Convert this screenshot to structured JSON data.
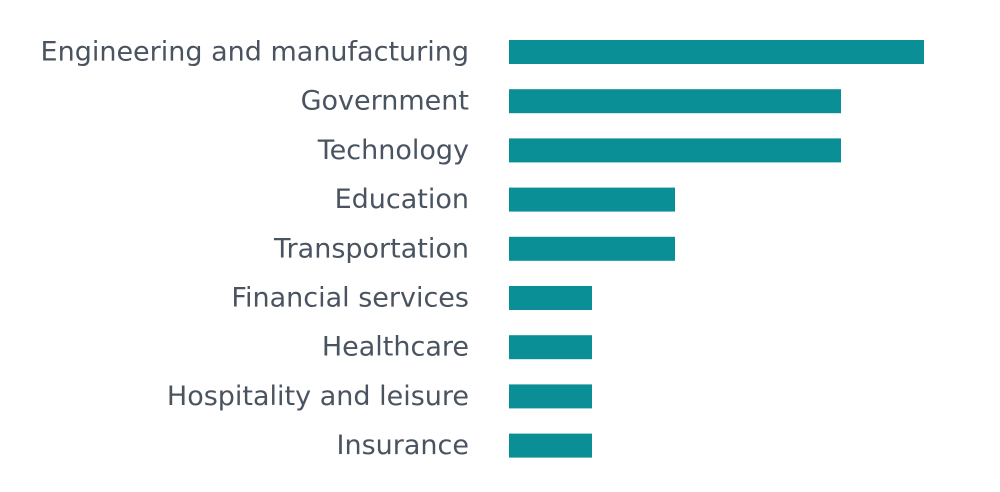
{
  "chart_data": {
    "type": "bar",
    "orientation": "horizontal",
    "categories": [
      "Engineering and manufacturing",
      "Government",
      "Technology",
      "Education",
      "Transportation",
      "Financial services",
      "Healthcare",
      "Hospitality and leisure",
      "Insurance"
    ],
    "values": [
      5,
      4,
      4,
      2,
      2,
      1,
      1,
      1,
      1
    ],
    "xlim": [
      0,
      5
    ],
    "title": "",
    "xlabel": "",
    "ylabel": "",
    "grid": false,
    "legend": "none",
    "bar_color": "#0b8f96",
    "label_color": "#4a5460"
  }
}
